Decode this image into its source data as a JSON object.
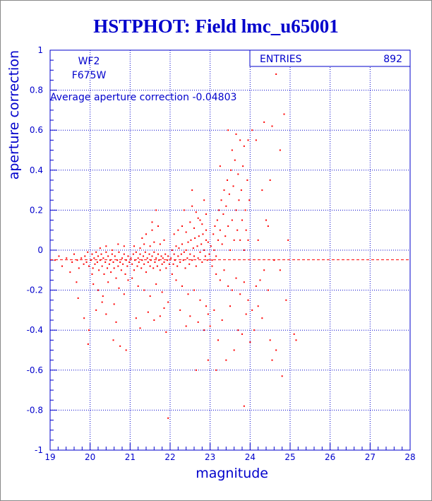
{
  "title": "HSTPHOT: Field lmc_u65001",
  "colors": {
    "axis": "#0000cc",
    "data": "#ff0000",
    "frame": "#888888"
  },
  "chart_data": {
    "type": "scatter",
    "title": "HSTPHOT: Field lmc_u65001",
    "xlabel": "magnitude",
    "ylabel": "aperture correction",
    "xlim": [
      19,
      28
    ],
    "ylim": [
      -1,
      1
    ],
    "x_ticks": [
      19,
      20,
      21,
      22,
      23,
      24,
      25,
      26,
      27,
      28
    ],
    "y_ticks": [
      -1,
      -0.8,
      -0.6,
      -0.4,
      -0.2,
      0,
      0.2,
      0.4,
      0.6,
      0.8,
      1
    ],
    "y_tick_labels": [
      "-1",
      "-0.8",
      "-0.6",
      "-0.4",
      "-0.2",
      "0",
      "0.2",
      "0.4",
      "0.6",
      "0.8",
      "1"
    ],
    "grid": true,
    "grid_style": "dotted",
    "stats_box": {
      "label": "ENTRIES",
      "value": "892",
      "placement": "top-right"
    },
    "annotations": [
      "WF2",
      "F675W",
      "Average aperture correction -0.04803"
    ],
    "reference_line": {
      "y": -0.04803,
      "style": "dashed",
      "color": "#ff0000"
    },
    "points": [
      [
        19.12,
        -0.05
      ],
      [
        19.22,
        -0.03
      ],
      [
        19.3,
        -0.08
      ],
      [
        19.41,
        -0.04
      ],
      [
        19.55,
        -0.06
      ],
      [
        19.6,
        -0.02
      ],
      [
        19.68,
        -0.05
      ],
      [
        19.72,
        -0.09
      ],
      [
        19.78,
        -0.04
      ],
      [
        19.84,
        -0.07
      ],
      [
        19.87,
        -0.03
      ],
      [
        19.91,
        -0.06
      ],
      [
        19.94,
        -0.01
      ],
      [
        19.97,
        -0.08
      ],
      [
        19.5,
        -0.11
      ],
      [
        19.66,
        -0.16
      ],
      [
        19.7,
        -0.24
      ],
      [
        19.85,
        -0.34
      ],
      [
        19.95,
        -0.47
      ],
      [
        19.97,
        -0.4
      ],
      [
        20.02,
        -0.05
      ],
      [
        20.05,
        -0.02
      ],
      [
        20.07,
        -0.09
      ],
      [
        20.1,
        -0.04
      ],
      [
        20.12,
        -0.07
      ],
      [
        20.15,
        -0.01
      ],
      [
        20.18,
        -0.06
      ],
      [
        20.2,
        -0.03
      ],
      [
        20.22,
        -0.1
      ],
      [
        20.25,
        -0.05
      ],
      [
        20.28,
        -0.02
      ],
      [
        20.3,
        -0.08
      ],
      [
        20.33,
        -0.04
      ],
      [
        20.35,
        -0.12
      ],
      [
        20.38,
        -0.06
      ],
      [
        20.4,
        -0.01
      ],
      [
        20.43,
        -0.09
      ],
      [
        20.45,
        -0.03
      ],
      [
        20.48,
        -0.07
      ],
      [
        20.5,
        -0.05
      ],
      [
        20.52,
        -0.11
      ],
      [
        20.55,
        -0.02
      ],
      [
        20.58,
        -0.06
      ],
      [
        20.6,
        -0.09
      ],
      [
        20.62,
        -0.03
      ],
      [
        20.65,
        -0.14
      ],
      [
        20.68,
        -0.05
      ],
      [
        20.7,
        -0.08
      ],
      [
        20.72,
        -0.01
      ],
      [
        20.75,
        -0.06
      ],
      [
        20.78,
        -0.1
      ],
      [
        20.8,
        -0.04
      ],
      [
        20.82,
        -0.07
      ],
      [
        20.85,
        -0.02
      ],
      [
        20.88,
        -0.12
      ],
      [
        20.9,
        -0.05
      ],
      [
        20.93,
        -0.08
      ],
      [
        20.95,
        -0.03
      ],
      [
        20.98,
        -0.06
      ],
      [
        20.08,
        -0.17
      ],
      [
        20.2,
        -0.2
      ],
      [
        20.32,
        -0.23
      ],
      [
        20.45,
        -0.16
      ],
      [
        20.6,
        -0.27
      ],
      [
        20.72,
        -0.19
      ],
      [
        20.85,
        -0.22
      ],
      [
        20.25,
        0.01
      ],
      [
        20.4,
        0.02
      ],
      [
        20.55,
        0.0
      ],
      [
        20.7,
        0.03
      ],
      [
        20.85,
        0.02
      ],
      [
        20.95,
        -0.15
      ],
      [
        20.15,
        -0.3
      ],
      [
        20.4,
        -0.32
      ],
      [
        20.58,
        -0.45
      ],
      [
        20.75,
        -0.48
      ],
      [
        20.9,
        -0.5
      ],
      [
        20.3,
        -0.26
      ],
      [
        20.65,
        -0.36
      ],
      [
        20.05,
        -0.12
      ],
      [
        21.02,
        -0.04
      ],
      [
        21.05,
        -0.07
      ],
      [
        21.08,
        -0.02
      ],
      [
        21.1,
        -0.1
      ],
      [
        21.12,
        -0.05
      ],
      [
        21.15,
        -0.01
      ],
      [
        21.18,
        -0.08
      ],
      [
        21.2,
        -0.04
      ],
      [
        21.22,
        -0.06
      ],
      [
        21.25,
        -0.02
      ],
      [
        21.28,
        -0.09
      ],
      [
        21.3,
        -0.05
      ],
      [
        21.33,
        -0.03
      ],
      [
        21.35,
        -0.07
      ],
      [
        21.38,
        -0.01
      ],
      [
        21.4,
        -0.11
      ],
      [
        21.43,
        -0.04
      ],
      [
        21.45,
        -0.06
      ],
      [
        21.48,
        -0.02
      ],
      [
        21.5,
        -0.08
      ],
      [
        21.52,
        -0.05
      ],
      [
        21.55,
        -0.03
      ],
      [
        21.58,
        -0.09
      ],
      [
        21.6,
        -0.01
      ],
      [
        21.62,
        -0.06
      ],
      [
        21.65,
        -0.04
      ],
      [
        21.68,
        -0.08
      ],
      [
        21.7,
        -0.02
      ],
      [
        21.72,
        -0.05
      ],
      [
        21.75,
        -0.1
      ],
      [
        21.78,
        -0.03
      ],
      [
        21.8,
        -0.07
      ],
      [
        21.82,
        -0.04
      ],
      [
        21.85,
        -0.06
      ],
      [
        21.88,
        -0.02
      ],
      [
        21.9,
        -0.09
      ],
      [
        21.93,
        -0.05
      ],
      [
        21.95,
        -0.03
      ],
      [
        21.98,
        -0.07
      ],
      [
        21.1,
        0.02
      ],
      [
        21.25,
        0.01
      ],
      [
        21.35,
        0.03
      ],
      [
        21.5,
        0.02
      ],
      [
        21.6,
        0.04
      ],
      [
        21.75,
        0.03
      ],
      [
        21.85,
        0.05
      ],
      [
        21.4,
        0.08
      ],
      [
        21.55,
        0.1
      ],
      [
        21.7,
        0.12
      ],
      [
        21.3,
        0.06
      ],
      [
        21.2,
        -0.18
      ],
      [
        21.35,
        -0.2
      ],
      [
        21.5,
        -0.23
      ],
      [
        21.65,
        -0.17
      ],
      [
        21.8,
        -0.21
      ],
      [
        21.95,
        -0.26
      ],
      [
        21.05,
        -0.14
      ],
      [
        21.45,
        -0.31
      ],
      [
        21.6,
        -0.35
      ],
      [
        21.75,
        -0.33
      ],
      [
        21.9,
        -0.41
      ],
      [
        21.25,
        -0.39
      ],
      [
        21.15,
        -0.34
      ],
      [
        21.85,
        -0.29
      ],
      [
        21.55,
        0.14
      ],
      [
        21.65,
        0.2
      ],
      [
        21.95,
        -0.84
      ],
      [
        22.02,
        -0.04
      ],
      [
        22.05,
        0.0
      ],
      [
        22.08,
        -0.07
      ],
      [
        22.1,
        -0.02
      ],
      [
        22.12,
        -0.05
      ],
      [
        22.15,
        0.02
      ],
      [
        22.18,
        -0.08
      ],
      [
        22.2,
        -0.03
      ],
      [
        22.22,
        0.01
      ],
      [
        22.25,
        -0.06
      ],
      [
        22.28,
        -0.02
      ],
      [
        22.3,
        0.03
      ],
      [
        22.33,
        -0.05
      ],
      [
        22.35,
        -0.01
      ],
      [
        22.38,
        -0.09
      ],
      [
        22.4,
        0.0
      ],
      [
        22.43,
        -0.04
      ],
      [
        22.45,
        0.04
      ],
      [
        22.48,
        -0.07
      ],
      [
        22.5,
        -0.02
      ],
      [
        22.52,
        0.05
      ],
      [
        22.55,
        -0.05
      ],
      [
        22.58,
        0.01
      ],
      [
        22.6,
        -0.03
      ],
      [
        22.62,
        0.06
      ],
      [
        22.65,
        -0.08
      ],
      [
        22.68,
        0.02
      ],
      [
        22.7,
        -0.04
      ],
      [
        22.72,
        0.07
      ],
      [
        22.75,
        -0.01
      ],
      [
        22.78,
        0.03
      ],
      [
        22.8,
        -0.06
      ],
      [
        22.82,
        0.08
      ],
      [
        22.85,
        0.0
      ],
      [
        22.88,
        -0.03
      ],
      [
        22.9,
        0.1
      ],
      [
        22.93,
        -0.05
      ],
      [
        22.95,
        0.04
      ],
      [
        22.98,
        -0.02
      ],
      [
        22.1,
        0.08
      ],
      [
        22.2,
        0.1
      ],
      [
        22.3,
        0.12
      ],
      [
        22.4,
        0.09
      ],
      [
        22.5,
        0.14
      ],
      [
        22.6,
        0.11
      ],
      [
        22.7,
        0.16
      ],
      [
        22.8,
        0.13
      ],
      [
        22.9,
        0.18
      ],
      [
        22.35,
        0.2
      ],
      [
        22.55,
        0.22
      ],
      [
        22.75,
        0.15
      ],
      [
        22.85,
        0.25
      ],
      [
        22.65,
        0.19
      ],
      [
        22.15,
        -0.15
      ],
      [
        22.3,
        -0.18
      ],
      [
        22.45,
        -0.22
      ],
      [
        22.6,
        -0.2
      ],
      [
        22.75,
        -0.25
      ],
      [
        22.9,
        -0.28
      ],
      [
        22.25,
        -0.3
      ],
      [
        22.5,
        -0.33
      ],
      [
        22.7,
        -0.36
      ],
      [
        22.85,
        -0.4
      ],
      [
        22.4,
        -0.38
      ],
      [
        22.95,
        -0.32
      ],
      [
        22.05,
        -0.12
      ],
      [
        22.65,
        -0.6
      ],
      [
        22.95,
        -0.55
      ],
      [
        22.55,
        0.3
      ],
      [
        22.9,
        0.05
      ],
      [
        23.02,
        0.02
      ],
      [
        23.05,
        -0.05
      ],
      [
        23.08,
        0.08
      ],
      [
        23.1,
        0.0
      ],
      [
        23.12,
        0.12
      ],
      [
        23.15,
        -0.03
      ],
      [
        23.18,
        0.15
      ],
      [
        23.2,
        0.05
      ],
      [
        23.22,
        0.2
      ],
      [
        23.25,
        0.1
      ],
      [
        23.28,
        0.25
      ],
      [
        23.3,
        0.03
      ],
      [
        23.33,
        0.18
      ],
      [
        23.35,
        0.3
      ],
      [
        23.38,
        0.07
      ],
      [
        23.4,
        0.22
      ],
      [
        23.43,
        0.35
      ],
      [
        23.45,
        0.12
      ],
      [
        23.48,
        0.28
      ],
      [
        23.5,
        0.0
      ],
      [
        23.52,
        0.4
      ],
      [
        23.55,
        0.15
      ],
      [
        23.58,
        0.32
      ],
      [
        23.6,
        0.05
      ],
      [
        23.62,
        0.45
      ],
      [
        23.65,
        0.2
      ],
      [
        23.68,
        0.1
      ],
      [
        23.7,
        0.38
      ],
      [
        23.72,
        0.25
      ],
      [
        23.75,
        0.05
      ],
      [
        23.78,
        0.3
      ],
      [
        23.8,
        0.15
      ],
      [
        23.82,
        0.42
      ],
      [
        23.85,
        0.0
      ],
      [
        23.88,
        0.2
      ],
      [
        23.9,
        0.1
      ],
      [
        23.93,
        0.35
      ],
      [
        23.95,
        0.05
      ],
      [
        23.98,
        0.25
      ],
      [
        23.55,
        0.5
      ],
      [
        23.75,
        0.55
      ],
      [
        23.85,
        0.52
      ],
      [
        23.45,
        0.6
      ],
      [
        23.65,
        0.58
      ],
      [
        23.95,
        0.55
      ],
      [
        23.05,
        -0.08
      ],
      [
        23.15,
        -0.12
      ],
      [
        23.25,
        -0.15
      ],
      [
        23.35,
        -0.1
      ],
      [
        23.45,
        -0.18
      ],
      [
        23.55,
        -0.2
      ],
      [
        23.65,
        -0.14
      ],
      [
        23.75,
        -0.22
      ],
      [
        23.85,
        -0.16
      ],
      [
        23.95,
        -0.25
      ],
      [
        23.1,
        -0.3
      ],
      [
        23.3,
        -0.35
      ],
      [
        23.5,
        -0.28
      ],
      [
        23.7,
        -0.4
      ],
      [
        23.9,
        -0.32
      ],
      [
        23.2,
        -0.45
      ],
      [
        23.6,
        -0.5
      ],
      [
        23.8,
        -0.42
      ],
      [
        23.4,
        -0.55
      ],
      [
        23.0,
        -0.38
      ],
      [
        23.25,
        0.42
      ],
      [
        23.15,
        -0.6
      ],
      [
        23.85,
        -0.78
      ],
      [
        24.05,
        0.6
      ],
      [
        24.15,
        0.55
      ],
      [
        24.35,
        0.64
      ],
      [
        24.55,
        0.62
      ],
      [
        24.85,
        0.68
      ],
      [
        24.75,
        0.5
      ],
      [
        24.65,
        0.88
      ],
      [
        24.4,
        0.15
      ],
      [
        24.45,
        0.12
      ],
      [
        24.3,
        0.3
      ],
      [
        24.5,
        0.35
      ],
      [
        24.2,
        0.05
      ],
      [
        24.25,
        -0.15
      ],
      [
        24.35,
        -0.1
      ],
      [
        24.45,
        -0.2
      ],
      [
        24.6,
        -0.05
      ],
      [
        24.75,
        -0.1
      ],
      [
        24.05,
        -0.3
      ],
      [
        24.2,
        -0.28
      ],
      [
        24.5,
        -0.45
      ],
      [
        24.65,
        -0.5
      ],
      [
        24.55,
        -0.55
      ],
      [
        24.8,
        -0.63
      ],
      [
        24.0,
        -0.46
      ],
      [
        24.1,
        -0.4
      ],
      [
        24.3,
        -0.34
      ],
      [
        24.9,
        -0.25
      ],
      [
        25.15,
        -0.45
      ],
      [
        24.95,
        0.05
      ],
      [
        24.15,
        -0.18
      ],
      [
        25.1,
        -0.42
      ]
    ]
  }
}
